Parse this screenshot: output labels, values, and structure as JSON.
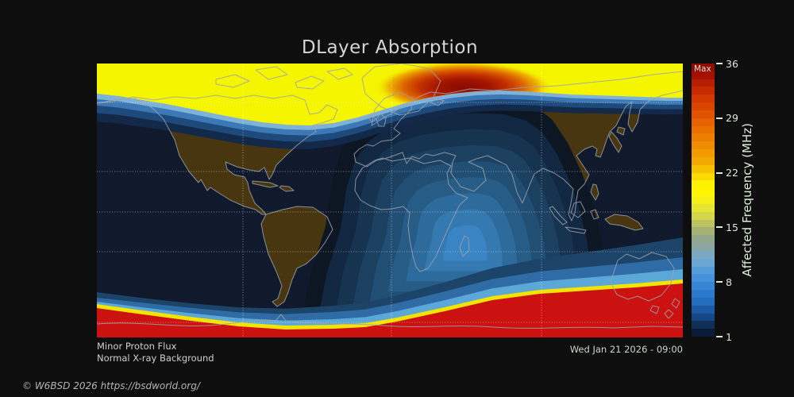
{
  "title": "DLayer Absorption",
  "map": {
    "status_line1": "Minor Proton Flux",
    "status_line2": "Normal X-ray Background",
    "datetime": "Wed Jan 21 2026 - 09:00",
    "colors": {
      "background": "#0e0e0e",
      "night_ocean": "#111a2c",
      "night_land": "#47360f",
      "coastline": "#9ba3ab",
      "gridline": "#ffffff",
      "polar_day_yellow": "#f5f500",
      "aurora_red": "#cc1111",
      "blob_core_red": "#880b00",
      "day_rings": [
        "#0d1623",
        "#122741",
        "#16334f",
        "#1b4060",
        "#214e73",
        "#275c87",
        "#2d6b9c",
        "#3479af",
        "#3a84c3"
      ],
      "top_fringe": [
        "#13294a",
        "#1d4a7a",
        "#3c78b4",
        "#7fb2d9"
      ],
      "bottom_fringe_blues": [
        "#1b4468",
        "#2f6ca6",
        "#5aa7d8"
      ],
      "bottom_fringe_yellow": "#f2e300"
    }
  },
  "colorbar": {
    "max_label": "Max",
    "axis_label": "Affected Frequency (MHz)",
    "unit": "MHz",
    "min": 1,
    "max": 36,
    "ticks": [
      36,
      29,
      22,
      15,
      8,
      1
    ],
    "segments": [
      "#8e0c00",
      "#a51100",
      "#b81d00",
      "#c62a00",
      "#d23800",
      "#da4600",
      "#e05400",
      "#e66200",
      "#ea7000",
      "#ee7e00",
      "#f08c00",
      "#f29a00",
      "#f4a900",
      "#f6c200",
      "#fbda00",
      "#fef200",
      "#fff500",
      "#f4ef18",
      "#e6e532",
      "#d3d74c",
      "#bcc462",
      "#a5b274",
      "#93a78a",
      "#8aa5a2",
      "#7ca7c2",
      "#6ba5d4",
      "#579cda",
      "#4691da",
      "#3786d6",
      "#2b7ace",
      "#236cbe",
      "#1c59a4",
      "#164786",
      "#103058",
      "#0a1c38"
    ]
  },
  "footer": {
    "copyright": "© W6BSD 2026 https://bsdworld.org/"
  }
}
